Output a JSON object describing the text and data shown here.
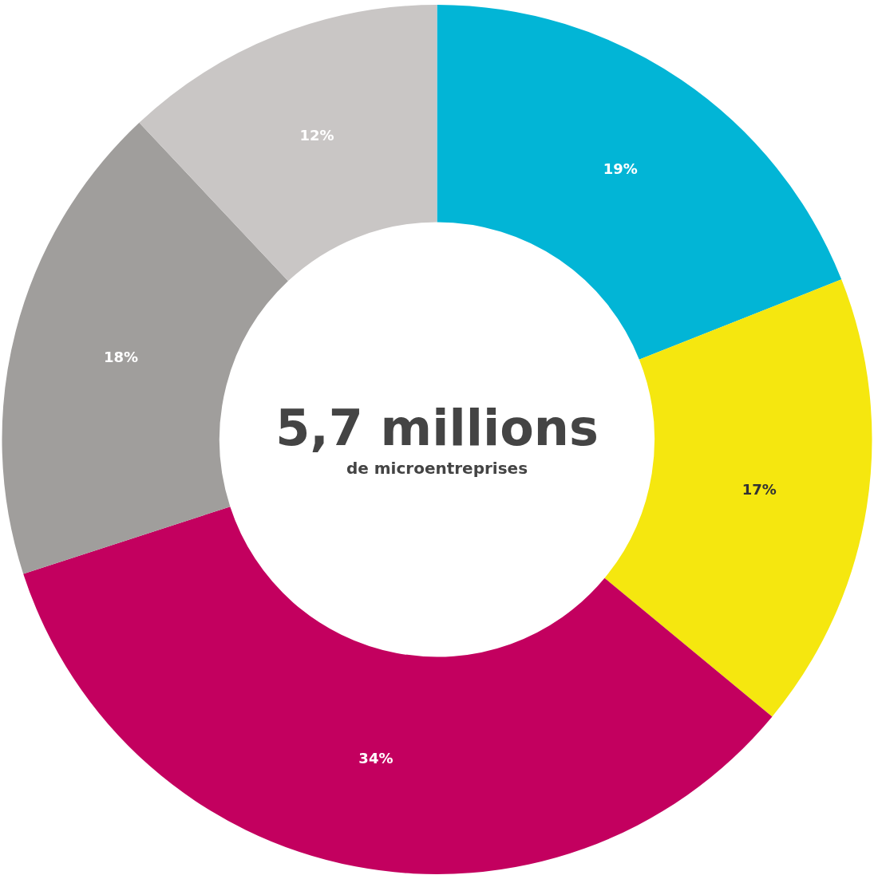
{
  "chart_data": {
    "type": "donut",
    "title": "5,7 millions",
    "subtitle": "de microentreprises",
    "categories": [
      null,
      null,
      null,
      null,
      null
    ],
    "values": [
      19,
      17,
      34,
      18,
      12
    ],
    "colors": [
      "#02b5d6",
      "#f5e70f",
      "#c3005f",
      "#a09e9c",
      "#c9c6c5"
    ],
    "value_labels": [
      "19%",
      "17%",
      "34%",
      "18%",
      "12%"
    ]
  }
}
